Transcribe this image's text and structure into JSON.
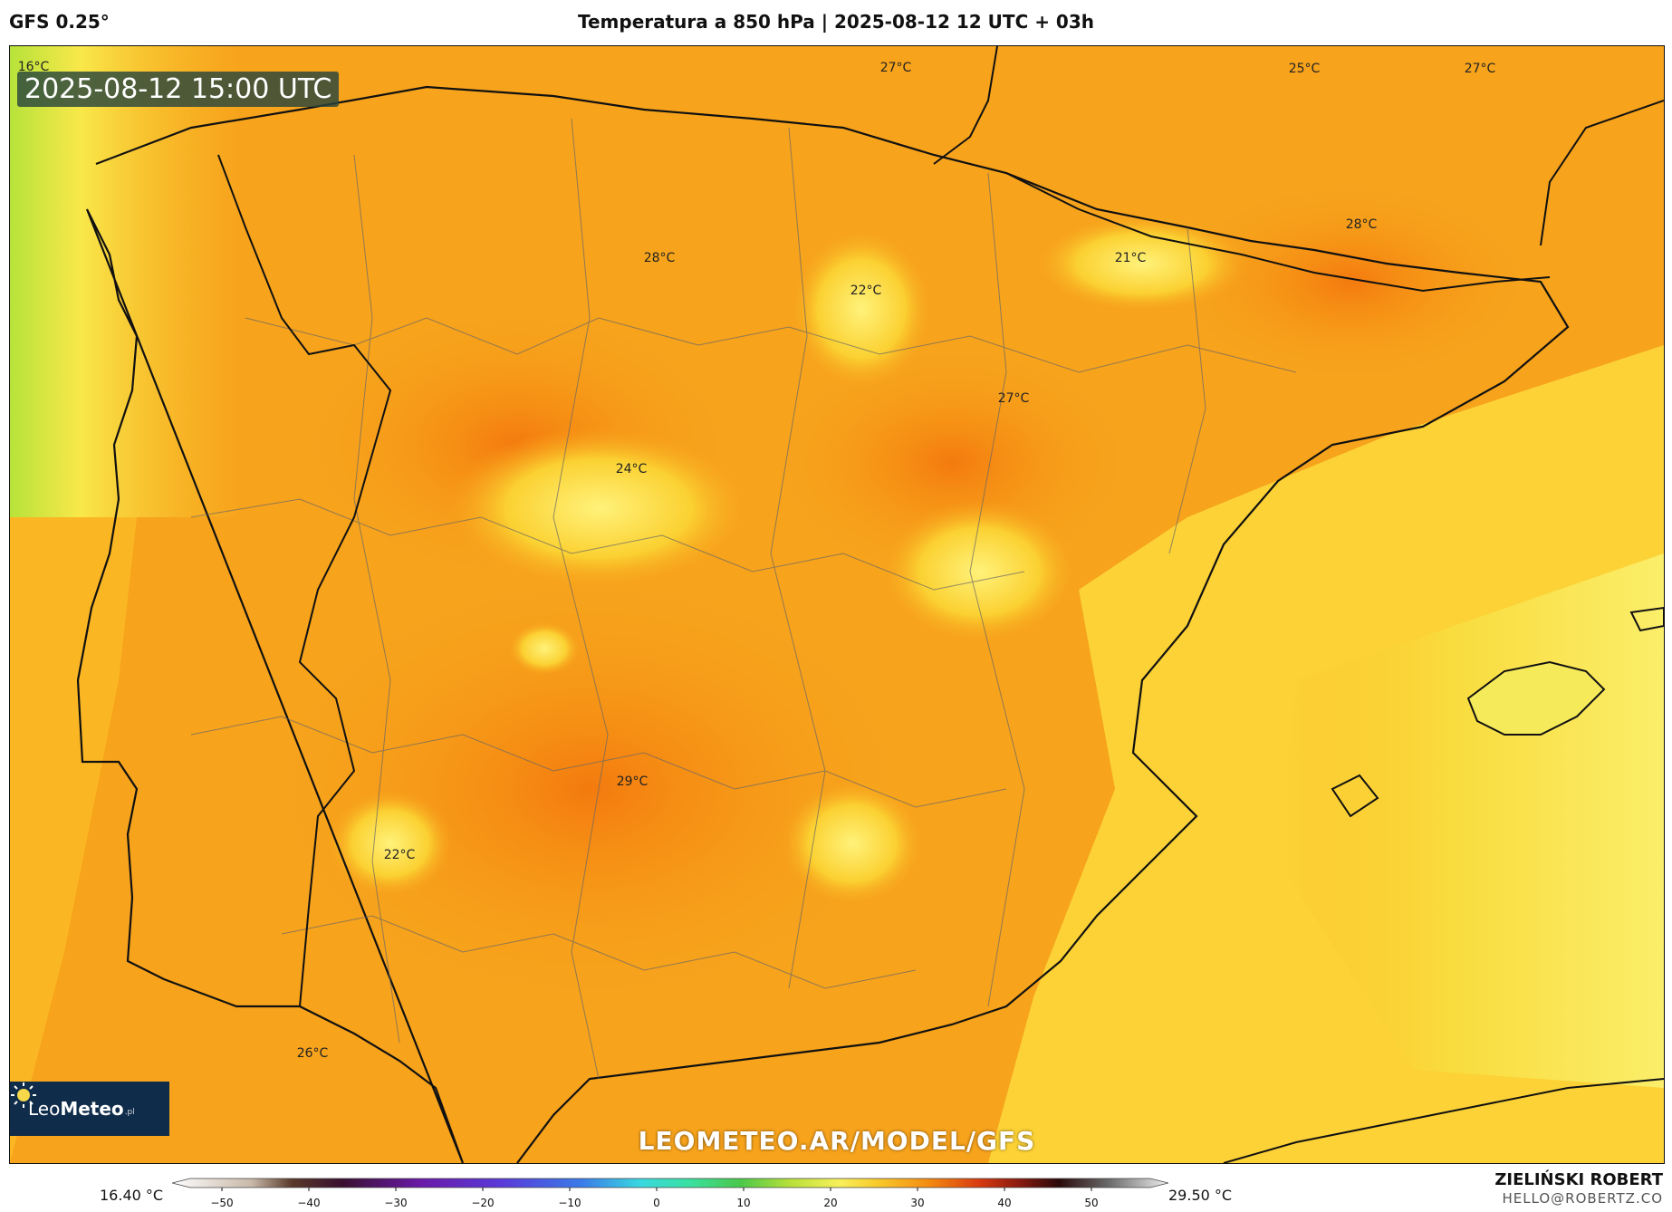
{
  "header": {
    "model": "GFS 0.25°",
    "title": "Temperatura a 850 hPa | 2025-08-12 12 UTC + 03h"
  },
  "map": {
    "valid_time": "2025-08-12 15:00 UTC",
    "watermark": "LEOMETEO.AR/MODEL/GFS",
    "logo": {
      "prefix": "Leo",
      "bold": "Meteo",
      "suffix": ".pl"
    },
    "labels": [
      {
        "text": "16°C"
      },
      {
        "text": "27°C"
      },
      {
        "text": "25°C"
      },
      {
        "text": "27°C"
      },
      {
        "text": "28°C"
      },
      {
        "text": "28°C"
      },
      {
        "text": "21°C"
      },
      {
        "text": "22°C"
      },
      {
        "text": "27°C"
      },
      {
        "text": "24°C"
      },
      {
        "text": "29°C"
      },
      {
        "text": "22°C"
      },
      {
        "text": "26°C"
      }
    ]
  },
  "colorbar": {
    "min_label": "16.40 °C",
    "max_label": "29.50 °C",
    "ticks": [
      "−50",
      "−40",
      "−30",
      "−20",
      "−10",
      "0",
      "10",
      "20",
      "30",
      "40",
      "50"
    ]
  },
  "author": {
    "name": "ZIELIŃSKI ROBERT",
    "email": "HELLO@ROBERTZ.CO"
  }
}
